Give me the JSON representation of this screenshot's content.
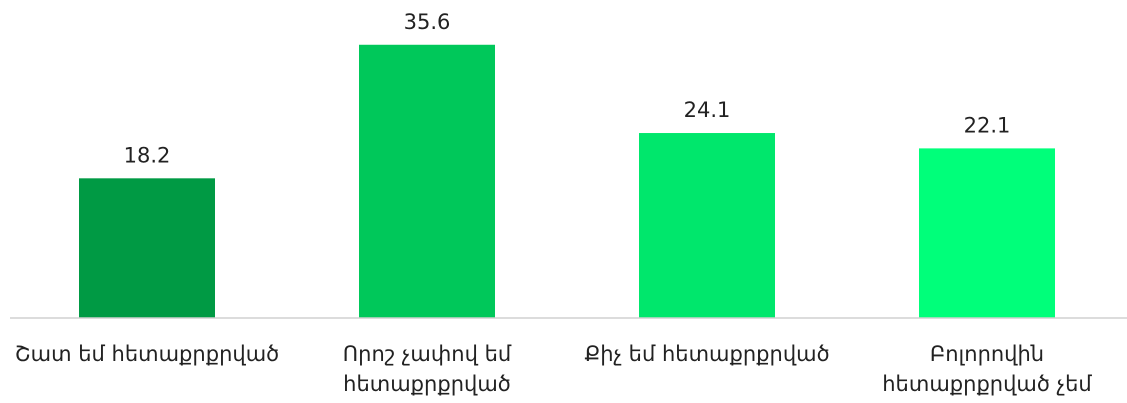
{
  "chart_data": {
    "type": "bar",
    "categories": [
      "Շատ եմ հետաքրքրված",
      "Որոշ չափով եմ\nհետաքրքրված",
      "Քիչ եմ հետաքրքրված",
      "Բոլորովին\nհետաքրքրված չեմ"
    ],
    "values": [
      18.2,
      35.6,
      24.1,
      22.1
    ],
    "colors": [
      "#009a44",
      "#00c85a",
      "#00e76c",
      "#00ff7a"
    ],
    "ylim": [
      0,
      40
    ]
  }
}
